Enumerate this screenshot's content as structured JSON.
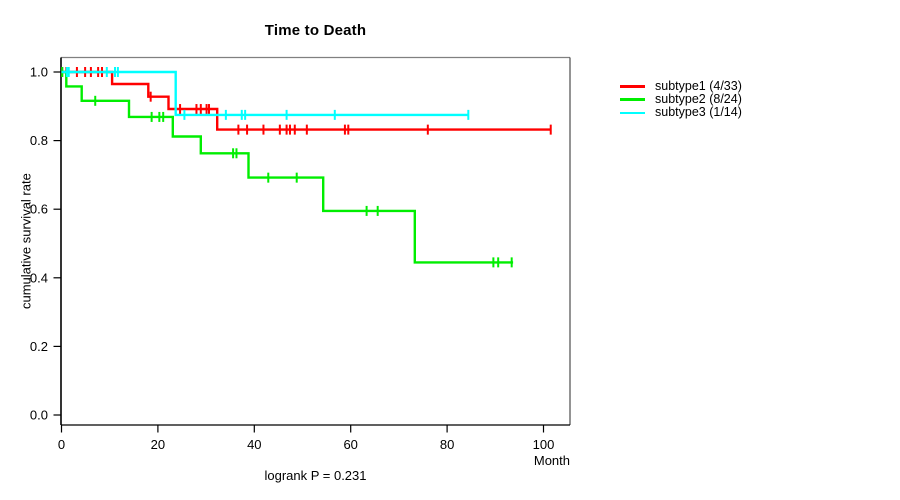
{
  "chart_data": {
    "type": "line",
    "subtype": "kaplan-meier-step",
    "title": "Time to Death",
    "xlabel": "Month",
    "ylabel": "cumulative survival rate",
    "annotation": "logrank P = 0.231",
    "xlim": [
      0,
      105.5
    ],
    "ylim": [
      0.0,
      1.0
    ],
    "xticks": [
      0,
      20,
      40,
      60,
      80,
      100
    ],
    "xtick_labels": [
      "0",
      "20",
      "40",
      "60",
      "80",
      "100"
    ],
    "yticks": [
      0.0,
      0.2,
      0.4,
      0.6,
      0.8,
      1.0
    ],
    "ytick_labels": [
      "0.0",
      "0.2",
      "0.4",
      "0.6",
      "0.8",
      "1.0"
    ],
    "grid": false,
    "legend_position": "right-outside",
    "axis_color": "#000000",
    "box_colors": {
      "top": "#808080",
      "right": "#4d4d4d",
      "bottom": "#000000",
      "left": "#000000"
    },
    "series": [
      {
        "name": "subtype1 (4/33)",
        "color": "#ff0000",
        "points": [
          [
            0,
            1.0
          ],
          [
            10.5,
            1.0
          ],
          [
            10.5,
            0.965
          ],
          [
            18.0,
            0.965
          ],
          [
            18.0,
            0.928
          ],
          [
            22.2,
            0.928
          ],
          [
            22.2,
            0.892
          ],
          [
            32.3,
            0.892
          ],
          [
            32.3,
            0.832
          ],
          [
            101.5,
            0.832
          ]
        ],
        "censors": [
          [
            0.15,
            1.0
          ],
          [
            1.0,
            1.0
          ],
          [
            3.2,
            1.0
          ],
          [
            4.9,
            1.0
          ],
          [
            6.1,
            1.0
          ],
          [
            7.6,
            1.0
          ],
          [
            8.4,
            1.0
          ],
          [
            18.5,
            0.928
          ],
          [
            24.6,
            0.892
          ],
          [
            28.0,
            0.892
          ],
          [
            28.9,
            0.892
          ],
          [
            30.1,
            0.892
          ],
          [
            30.6,
            0.892
          ],
          [
            36.7,
            0.832
          ],
          [
            38.5,
            0.832
          ],
          [
            41.9,
            0.832
          ],
          [
            45.3,
            0.832
          ],
          [
            46.7,
            0.832
          ],
          [
            47.4,
            0.832
          ],
          [
            48.4,
            0.832
          ],
          [
            50.9,
            0.832
          ],
          [
            58.8,
            0.832
          ],
          [
            59.5,
            0.832
          ],
          [
            76.0,
            0.832
          ],
          [
            101.5,
            0.832
          ]
        ]
      },
      {
        "name": "subtype2 (8/24)",
        "color": "#00ee00",
        "points": [
          [
            0,
            1.0
          ],
          [
            1.0,
            1.0
          ],
          [
            1.0,
            0.958
          ],
          [
            4.2,
            0.958
          ],
          [
            4.2,
            0.916
          ],
          [
            14.0,
            0.916
          ],
          [
            14.0,
            0.869
          ],
          [
            23.1,
            0.869
          ],
          [
            23.1,
            0.812
          ],
          [
            28.9,
            0.812
          ],
          [
            28.9,
            0.763
          ],
          [
            38.8,
            0.763
          ],
          [
            38.8,
            0.692
          ],
          [
            54.3,
            0.692
          ],
          [
            54.3,
            0.595
          ],
          [
            73.3,
            0.595
          ],
          [
            73.3,
            0.445
          ],
          [
            93.7,
            0.445
          ]
        ],
        "censors": [
          [
            0.15,
            1.0
          ],
          [
            7.0,
            0.916
          ],
          [
            18.7,
            0.869
          ],
          [
            20.3,
            0.869
          ],
          [
            21.1,
            0.869
          ],
          [
            35.6,
            0.763
          ],
          [
            36.3,
            0.763
          ],
          [
            42.9,
            0.692
          ],
          [
            48.8,
            0.692
          ],
          [
            63.3,
            0.595
          ],
          [
            65.6,
            0.595
          ],
          [
            89.6,
            0.445
          ],
          [
            90.6,
            0.445
          ],
          [
            93.4,
            0.445
          ]
        ]
      },
      {
        "name": "subtype3 (1/14)",
        "color": "#00ffff",
        "points": [
          [
            0,
            1.0
          ],
          [
            23.7,
            1.0
          ],
          [
            23.7,
            0.875
          ],
          [
            84.4,
            0.875
          ]
        ],
        "censors": [
          [
            1.1,
            1.0
          ],
          [
            1.5,
            1.0
          ],
          [
            9.4,
            1.0
          ],
          [
            11.1,
            1.0
          ],
          [
            11.7,
            1.0
          ],
          [
            25.5,
            0.875
          ],
          [
            34.1,
            0.875
          ],
          [
            37.4,
            0.875
          ],
          [
            38.1,
            0.875
          ],
          [
            46.7,
            0.875
          ],
          [
            56.7,
            0.875
          ],
          [
            84.4,
            0.875
          ]
        ]
      }
    ]
  }
}
